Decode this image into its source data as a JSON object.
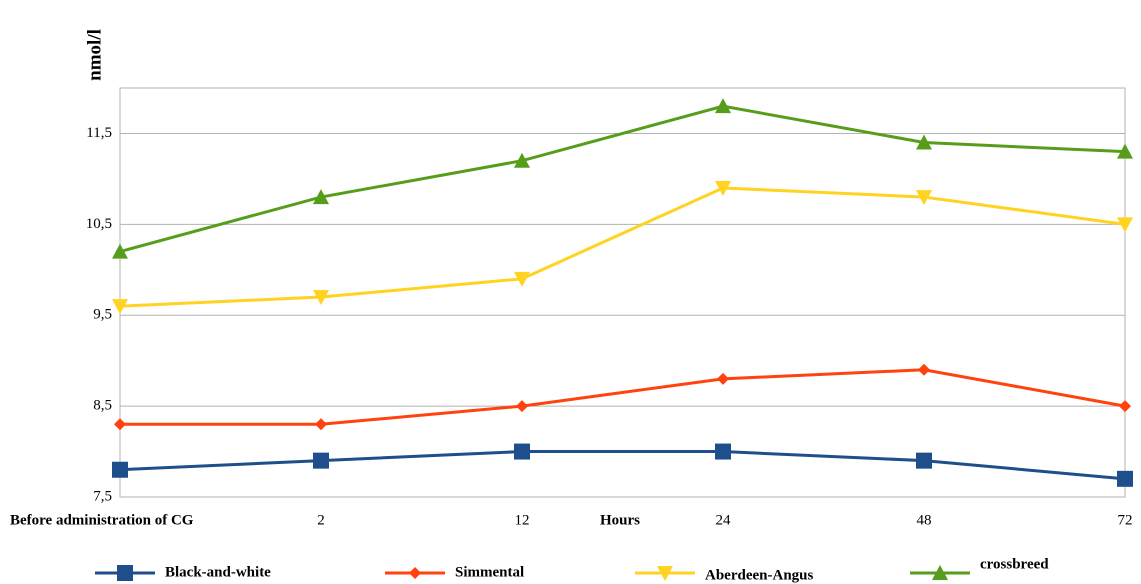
{
  "chart_data": {
    "type": "line",
    "y_label": "nmol/l",
    "x_label": "Hours",
    "categories": [
      "Before administration of CG",
      "2",
      "12",
      "24",
      "48",
      "72"
    ],
    "series": [
      {
        "name": "Black-and-white",
        "color": "#1f4e8c",
        "marker": "square",
        "values": [
          7.8,
          7.9,
          8.0,
          8.0,
          7.9,
          7.7
        ]
      },
      {
        "name": "Simmental",
        "color": "#ff420e",
        "marker": "diamond",
        "values": [
          8.3,
          8.3,
          8.5,
          8.8,
          8.9,
          8.5
        ]
      },
      {
        "name": "Aberdeen-Angus",
        "color": "#ffd320",
        "marker": "triangle-down",
        "values": [
          9.6,
          9.7,
          9.9,
          10.9,
          10.8,
          10.5
        ]
      },
      {
        "name": "crossbreed",
        "color": "#579d1c",
        "marker": "triangle-up",
        "values": [
          10.2,
          10.8,
          11.2,
          11.8,
          11.4,
          11.3
        ]
      }
    ],
    "ylim": [
      7.5,
      12
    ],
    "yticks": [
      {
        "value": 7.5,
        "label": "7,5"
      },
      {
        "value": 8.5,
        "label": "8,5"
      },
      {
        "value": 9.5,
        "label": "9,5"
      },
      {
        "value": 10.5,
        "label": "10,5"
      },
      {
        "value": 11.5,
        "label": "11,5"
      }
    ],
    "grid": true,
    "legend": "bottom"
  }
}
